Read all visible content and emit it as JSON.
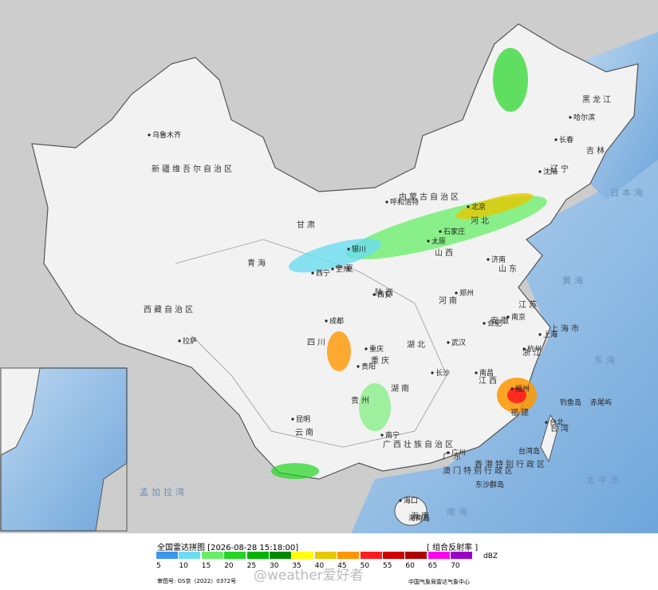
{
  "header": {
    "title": "全国雷达拼图 [2026-08-28 15:18:00]",
    "product": "[ 组合反射率 ]"
  },
  "legend": {
    "unit": "dBZ",
    "levels": [
      5,
      10,
      15,
      20,
      25,
      30,
      35,
      40,
      45,
      50,
      55,
      60,
      65,
      70
    ],
    "colors": [
      "#3c96f0",
      "#6adcf0",
      "#66ee66",
      "#22d622",
      "#00b400",
      "#008a00",
      "#ffff00",
      "#e6c800",
      "#ff9600",
      "#ff1e1e",
      "#d00000",
      "#b00000",
      "#ff00f0",
      "#9b00c8"
    ]
  },
  "footer": {
    "approval": "审图号: GS京（2022）0372号",
    "org": "中国气象局雷达气象中心",
    "watermark": "@weather爱好者"
  },
  "map": {
    "provinces": [
      "新疆维吾尔自治区",
      "西藏自治区",
      "青海",
      "甘肃",
      "内蒙古自治区",
      "黑龙江",
      "吉林",
      "辽宁",
      "河北",
      "山西",
      "陕西",
      "四川",
      "云南",
      "贵州",
      "广西壮族自治区",
      "广东",
      "湖南",
      "湖北",
      "河南",
      "山东",
      "江苏",
      "安徽",
      "浙江",
      "江西",
      "福建",
      "台湾",
      "海南",
      "宁夏",
      "重庆",
      "上海市",
      "香港特别行政区",
      "澳门特别行政区"
    ],
    "cities": [
      "乌鲁木齐",
      "拉萨",
      "哈尔滨",
      "长春",
      "沈阳",
      "呼和浩特",
      "北京",
      "太原",
      "石家庄",
      "济南",
      "郑州",
      "西安",
      "兰州",
      "西宁",
      "银川",
      "成都",
      "重庆",
      "贵阳",
      "昆明",
      "南宁",
      "广州",
      "长沙",
      "武汉",
      "南昌",
      "合肥",
      "南京",
      "杭州",
      "上海",
      "福州",
      "台北",
      "海口"
    ],
    "seas": [
      "黄海",
      "东海",
      "南海",
      "日本海",
      "太平洋",
      "孟加拉湾"
    ],
    "islands": [
      "钓鱼岛",
      "赤尾屿",
      "东沙群岛",
      "台湾岛",
      "海南岛"
    ]
  }
}
